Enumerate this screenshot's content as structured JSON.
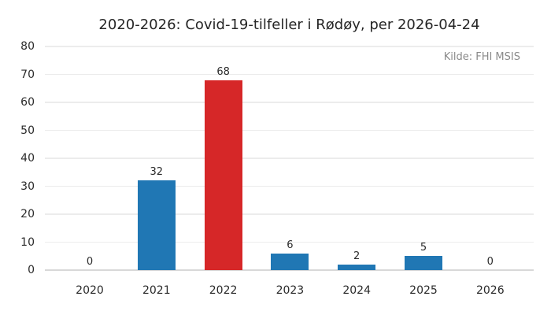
{
  "chart_data": {
    "type": "bar",
    "title": "2020-2026: Covid-19-tilfeller i Rødøy, per 2026-04-24",
    "source_note": "Kilde: FHI MSIS",
    "categories": [
      "2020",
      "2021",
      "2022",
      "2023",
      "2024",
      "2025",
      "2026"
    ],
    "values": [
      0,
      32,
      68,
      6,
      2,
      5,
      0
    ],
    "value_labels": [
      "0",
      "32",
      "68",
      "6",
      "2",
      "5",
      "0"
    ],
    "bar_colors": [
      "#2077b4",
      "#2077b4",
      "#d62728",
      "#2077b4",
      "#2077b4",
      "#2077b4",
      "#2077b4"
    ],
    "xlabel": "",
    "ylabel": "",
    "ylim": [
      0,
      80
    ],
    "yticks": [
      0,
      10,
      20,
      30,
      40,
      50,
      60,
      70,
      80
    ],
    "grid": "horizontal",
    "legend": "none",
    "colors": {
      "bar_default": "#2077b4",
      "bar_highlight": "#d62728",
      "gridline": "#ececec",
      "baseline": "#d8d8d8",
      "tick_text": "#2b2b2b",
      "title_text": "#262626",
      "source_text": "#8a8a8a",
      "background": "#ffffff"
    }
  }
}
